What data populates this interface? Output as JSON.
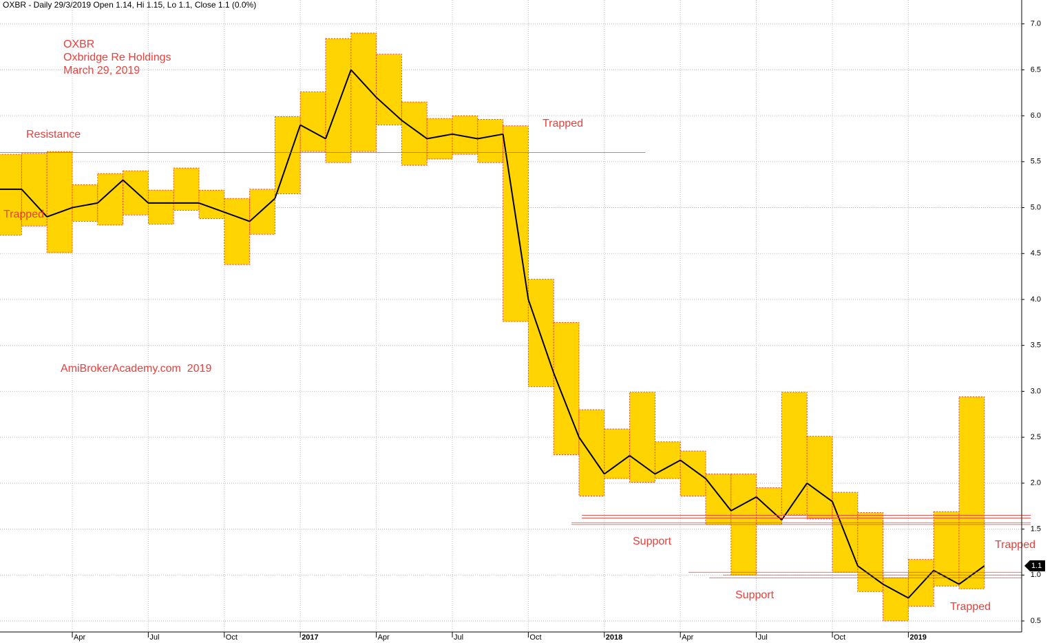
{
  "chart_data": {
    "type": "candlestick",
    "title": "OXBR - Daily 29/3/2019 Open 1.14, Hi 1.15, Lo 1.1, Close 1.1 (0.0%)",
    "text_block": [
      "OXBR",
      "Oxbridge Re Holdings",
      "March 29, 2019"
    ],
    "watermark": "AmiBrokerAcademy.com  2019",
    "annotations": [
      "Resistance",
      "Trapped",
      "Trapped",
      "Support",
      "Support",
      "Trapped",
      "Trapped"
    ],
    "categories": [
      null,
      null,
      null,
      "Apr",
      null,
      null,
      "Jul",
      null,
      null,
      "Oct",
      null,
      null,
      "2017",
      null,
      null,
      "Apr",
      null,
      null,
      "Jul",
      null,
      null,
      "Oct",
      null,
      null,
      "2018",
      null,
      null,
      "Apr",
      null,
      null,
      "Jul",
      null,
      null,
      "Oct",
      null,
      null,
      "2019",
      null,
      null
    ],
    "high": [
      5.58,
      5.59,
      5.61,
      5.25,
      5.37,
      5.4,
      5.19,
      5.43,
      5.19,
      5.1,
      5.2,
      5.99,
      6.26,
      6.84,
      6.9,
      6.67,
      6.15,
      5.97,
      6.0,
      5.96,
      5.89,
      4.22,
      3.75,
      2.8,
      2.59,
      2.99,
      2.45,
      2.35,
      2.1,
      2.1,
      1.95,
      2.99,
      2.51,
      1.9,
      1.68,
      0.97,
      1.17,
      1.69,
      2.94
    ],
    "low": [
      4.7,
      4.8,
      4.51,
      4.85,
      4.81,
      4.92,
      4.82,
      4.97,
      4.88,
      4.38,
      4.71,
      5.15,
      5.61,
      5.49,
      5.61,
      5.9,
      5.46,
      5.53,
      5.58,
      5.49,
      3.76,
      3.05,
      2.31,
      1.86,
      2.05,
      2.01,
      2.05,
      1.86,
      1.55,
      1.0,
      1.55,
      1.66,
      1.61,
      1.03,
      0.82,
      0.5,
      0.66,
      0.88,
      0.85
    ],
    "open": [
      5.2,
      5.2,
      4.9,
      5.0,
      5.05,
      5.3,
      5.05,
      5.05,
      5.05,
      4.95,
      4.85,
      5.1,
      5.9,
      5.75,
      6.5,
      6.2,
      5.95,
      5.75,
      5.8,
      5.75,
      5.8,
      4.0,
      3.2,
      2.5,
      2.1,
      2.3,
      2.1,
      2.25,
      2.05,
      1.7,
      1.85,
      1.6,
      2.0,
      1.8,
      1.1,
      0.9,
      0.75,
      1.05,
      0.9
    ],
    "close": [
      5.2,
      4.9,
      5.0,
      5.05,
      5.3,
      5.05,
      5.05,
      5.05,
      4.95,
      4.85,
      5.1,
      5.9,
      5.75,
      6.5,
      6.2,
      5.95,
      5.75,
      5.8,
      5.75,
      5.8,
      4.0,
      3.2,
      2.5,
      2.1,
      2.3,
      2.1,
      2.25,
      2.05,
      1.7,
      1.85,
      1.6,
      2.0,
      1.8,
      1.1,
      0.9,
      0.75,
      1.05,
      0.9,
      1.1
    ],
    "box_color": "#ffd400",
    "box_border": "#e8403c",
    "line_color": "#000000",
    "level_color": "#e8403c",
    "levels": [
      5.6,
      1.65,
      1.62,
      1.57,
      1.55,
      1.03,
      1.0,
      0.97
    ],
    "last_price": 1.1,
    "ylim": [
      0.38,
      7.26
    ],
    "yticks": [
      0.5,
      {
        "value": 1,
        "label": "1.0"
      },
      1.5,
      {
        "value": 2,
        "label": "2.0"
      },
      2.5,
      {
        "value": 3,
        "label": "3.0"
      },
      3.5,
      {
        "value": 4,
        "label": "4.0"
      },
      4.5,
      {
        "value": 5,
        "label": "5.0"
      },
      5.5,
      {
        "value": 6,
        "label": "6.0"
      },
      6.5,
      {
        "value": 7,
        "label": "7.0"
      }
    ],
    "grid": true
  }
}
